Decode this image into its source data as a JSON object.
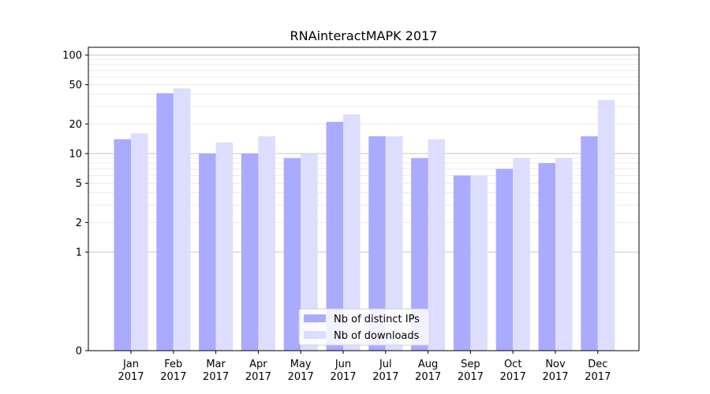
{
  "chart_data": {
    "type": "bar",
    "title": "RNAinteractMAPK 2017",
    "xlabel": "",
    "ylabel": "",
    "y_scale": "symlog",
    "ylim": [
      0,
      120
    ],
    "y_ticks": [
      0,
      1,
      2,
      5,
      10,
      20,
      50,
      100
    ],
    "grid": true,
    "legend_position": "bottom-center",
    "categories": [
      [
        "Jan",
        "2017"
      ],
      [
        "Feb",
        "2017"
      ],
      [
        "Mar",
        "2017"
      ],
      [
        "Apr",
        "2017"
      ],
      [
        "May",
        "2017"
      ],
      [
        "Jun",
        "2017"
      ],
      [
        "Jul",
        "2017"
      ],
      [
        "Aug",
        "2017"
      ],
      [
        "Sep",
        "2017"
      ],
      [
        "Oct",
        "2017"
      ],
      [
        "Nov",
        "2017"
      ],
      [
        "Dec",
        "2017"
      ]
    ],
    "series": [
      {
        "name": "Nb of distinct IPs",
        "color": "#aaaaff",
        "values": [
          14,
          41,
          10,
          10,
          9,
          21,
          15,
          9,
          6,
          7,
          8,
          15
        ]
      },
      {
        "name": "Nb of downloads",
        "color": "#ddddff",
        "values": [
          16,
          46,
          13,
          15,
          10,
          25,
          15,
          14,
          6,
          9,
          9,
          35
        ]
      }
    ]
  }
}
